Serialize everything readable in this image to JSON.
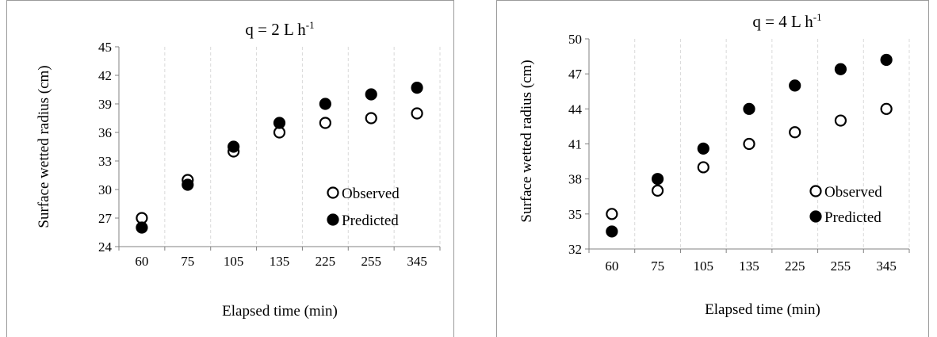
{
  "chart_data": [
    {
      "type": "scatter",
      "title": "q = 2 L h",
      "title_superscript": "-1",
      "xlabel": "Elapsed time (min)",
      "ylabel": "Surface wetted radius (cm)",
      "categories": [
        "60",
        "75",
        "105",
        "135",
        "225",
        "255",
        "345"
      ],
      "ylim": [
        24,
        45
      ],
      "yticks": [
        24,
        27,
        30,
        33,
        36,
        39,
        42,
        45
      ],
      "grid": true,
      "legend_position": "bottom-right",
      "series": [
        {
          "name": "Observed",
          "marker": "open-circle",
          "values": [
            27,
            31,
            34,
            36,
            37,
            37.5,
            38
          ]
        },
        {
          "name": "Predicted",
          "marker": "filled-circle",
          "values": [
            26,
            30.5,
            34.5,
            37,
            39,
            40,
            40.7
          ]
        }
      ]
    },
    {
      "type": "scatter",
      "title": "q = 4 L h",
      "title_superscript": "-1",
      "xlabel": "Elapsed time (min)",
      "ylabel": "Surface wetted radius (cm)",
      "categories": [
        "60",
        "75",
        "105",
        "135",
        "225",
        "255",
        "345"
      ],
      "ylim": [
        32,
        50
      ],
      "yticks": [
        32,
        35,
        38,
        41,
        44,
        47,
        50
      ],
      "grid": true,
      "legend_position": "bottom-right",
      "series": [
        {
          "name": "Observed",
          "marker": "open-circle",
          "values": [
            35,
            37,
            39,
            41,
            42,
            43,
            44
          ]
        },
        {
          "name": "Predicted",
          "marker": "filled-circle",
          "values": [
            33.5,
            38,
            40.6,
            44,
            46,
            47.4,
            48.2
          ]
        }
      ]
    }
  ]
}
